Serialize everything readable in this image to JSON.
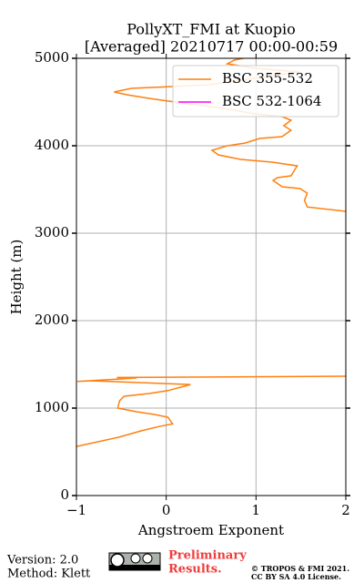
{
  "chart_data": {
    "type": "profile",
    "title": "PollyXT_FMI at Kuopio",
    "subtitle": "[Averaged] 20210717 00:00-00:59",
    "xlabel": "Angstroem Exponent",
    "ylabel": "Height (m)",
    "xlim": [
      -1,
      2
    ],
    "ylim": [
      0,
      5000
    ],
    "xticks": [
      {
        "value": -1,
        "label": "−1"
      },
      0,
      1,
      2
    ],
    "yticks": [
      0,
      1000,
      2000,
      3000,
      4000,
      5000
    ],
    "grid": true,
    "legend": "upper right",
    "series": [
      {
        "name": "BSC 355-532",
        "color": "#ff7f0e",
        "x": [
          -1,
          -0.53,
          -0.28,
          -0.08,
          0.07,
          0.02,
          -0.13,
          -0.33,
          -0.54,
          -0.52,
          -0.47,
          -0.19,
          0.02,
          0.27,
          -0.84,
          -0.99,
          -0.33,
          -0.55,
          2,
          null,
          2,
          1.57,
          1.54,
          1.57,
          1.49,
          1.29,
          1.19,
          1.24,
          1.39,
          1.44,
          1.46,
          1.18,
          0.83,
          0.58,
          0.51,
          0.68,
          0.88,
          1.04,
          1.29,
          1.39,
          1.31,
          1.39,
          1.29,
          0.99,
          0.58,
          0.17,
          -0.19,
          -0.44,
          -0.58,
          -0.39,
          0.07,
          0.48,
          1.49,
          0.99,
          0.68,
          0.76,
          0.86
        ],
        "values": [
          560,
          667,
          740,
          790,
          820,
          896,
          927,
          958,
          1000,
          1083,
          1135,
          1167,
          1200,
          1270,
          1312,
          1305,
          1344,
          1350,
          1365,
          null,
          3250,
          3300,
          3375,
          3458,
          3510,
          3531,
          3604,
          3635,
          3656,
          3740,
          3770,
          3812,
          3844,
          3896,
          3948,
          4000,
          4031,
          4083,
          4104,
          4177,
          4229,
          4292,
          4333,
          4365,
          4437,
          4490,
          4542,
          4583,
          4615,
          4656,
          4677,
          4698,
          4844,
          4885,
          4937,
          4980,
          5000
        ]
      },
      {
        "name": "BSC 532-1064",
        "color": "#ff00ff",
        "x": [],
        "values": []
      }
    ]
  },
  "footer": {
    "version": "Version: 2.0",
    "method": "Method: Klett",
    "preliminary": "Preliminary",
    "results": "Results.",
    "copyright": "© TROPOS & FMI 2021.",
    "license": "CC BY SA 4.0 License."
  }
}
